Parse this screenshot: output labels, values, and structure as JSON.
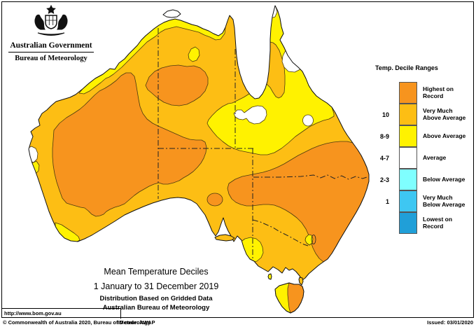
{
  "header": {
    "government": "Australian Government",
    "bureau": "Bureau of Meteorology"
  },
  "legend": {
    "title": "Temp. Decile Ranges",
    "items": [
      {
        "range": "",
        "lines": [
          "Highest on",
          "Record"
        ],
        "label": "Highest on Record",
        "color": "#F7941E"
      },
      {
        "range": "10",
        "lines": [
          "Very Much",
          "Above Average"
        ],
        "label": "Very Much Above Average",
        "color": "#FDBE14"
      },
      {
        "range": "8-9",
        "lines": [
          "Above Average"
        ],
        "label": "Above Average",
        "color": "#FFF200"
      },
      {
        "range": "4-7",
        "lines": [
          "Average"
        ],
        "label": "Average",
        "color": "#FFFFFF"
      },
      {
        "range": "2-3",
        "lines": [
          "Below Average"
        ],
        "label": "Below Average",
        "color": "#7FFFFF"
      },
      {
        "range": "1",
        "lines": [
          "Very Much",
          "Below Average"
        ],
        "label": "Very Much Below Average",
        "color": "#3EC7F2"
      },
      {
        "range": "",
        "lines": [
          "Lowest on",
          "Record"
        ],
        "label": "Lowest on Record",
        "color": "#209FD8"
      }
    ]
  },
  "palette": {
    "orange": "#F7941E",
    "amber": "#FDBE14",
    "yellow": "#FFF200",
    "white": "#FFFFFF",
    "cyan": "#7FFFFF",
    "sky": "#3EC7F2",
    "blue": "#209FD8"
  },
  "map": {
    "url": "http://www.bom.gov.au",
    "regions": [
      {
        "area": "Western Australia interior and central belt",
        "decile": "Highest on Record"
      },
      {
        "area": "Northern Territory Top End interior",
        "decile": "Highest on Record"
      },
      {
        "area": "Southern Queensland and most of New South Wales",
        "decile": "Highest on Record"
      },
      {
        "area": "Eastern Tasmania",
        "decile": "Highest on Record"
      },
      {
        "area": "Most of remaining mainland",
        "decile": "Very Much Above Average"
      },
      {
        "area": "Kimberley-Top End coast, Cape York and north Queensland, southwest WA tip, southeast SA, western Tasmania, alpine NSW",
        "decile": "Above Average"
      },
      {
        "area": "Cape York tip and east peninsula, central Queensland patches, Shark Bay coast",
        "decile": "Average"
      }
    ]
  },
  "titles": {
    "line1": "Mean Temperature Deciles",
    "line2": "1 January to 31 December 2019",
    "line3": "Distribution Based on Gridded Data",
    "line4": "Australian Bureau of Meteorology"
  },
  "footer": {
    "copyright": "© Commonwealth of Australia 2020, Bureau of Meteorology",
    "id_code": "ID code: AWAP",
    "issued": "Issued: 03/01/2020"
  }
}
